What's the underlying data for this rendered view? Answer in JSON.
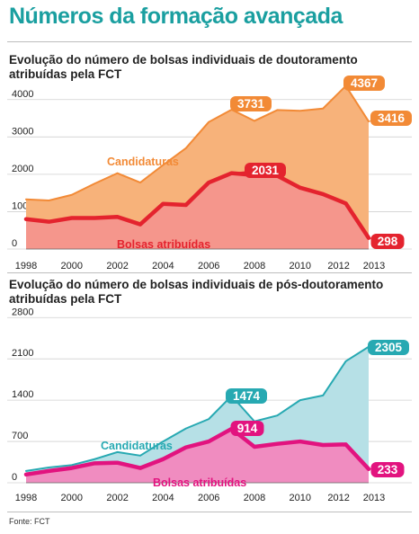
{
  "header": {
    "title": "Números da formação avançada"
  },
  "source": "Fonte: FCT",
  "colors": {
    "title": "#1a9fa0",
    "orange_fill": "#f7b27a",
    "orange_line": "#f28a36",
    "red_fill": "#f5968c",
    "red_line": "#e4232e",
    "teal_fill": "#b6e0e6",
    "teal_line": "#27a9b2",
    "pink_fill": "#f08cc0",
    "pink_line": "#e2137f"
  },
  "chart_data": [
    {
      "type": "area",
      "title": "Evolução do número de bolsas individuais de doutoramento atribuídas pela FCT",
      "x": [
        1998,
        1999,
        2000,
        2001,
        2002,
        2003,
        2004,
        2005,
        2006,
        2007,
        2008,
        2009,
        2010,
        2011,
        2012,
        2013
      ],
      "x_ticks": [
        "1998",
        "2000",
        "2002",
        "2004",
        "2006",
        "2008",
        "2010",
        "2012",
        "2013"
      ],
      "y_ticks": [
        "0",
        "1000",
        "2000",
        "3000",
        "4000"
      ],
      "ylim": [
        0,
        4500
      ],
      "grid": true,
      "series": [
        {
          "name": "Candidaturas",
          "values": [
            1330,
            1300,
            1450,
            1750,
            2030,
            1780,
            2250,
            2700,
            3400,
            3731,
            3430,
            3720,
            3700,
            3760,
            4367,
            3416
          ],
          "labels": [
            {
              "index": 9,
              "text": "3731"
            },
            {
              "index": 14,
              "text": "4367"
            },
            {
              "index": 15,
              "text": "3416"
            }
          ]
        },
        {
          "name": "Bolsas atribuídas",
          "values": [
            800,
            730,
            830,
            830,
            860,
            660,
            1210,
            1180,
            1780,
            2031,
            1980,
            1960,
            1640,
            1470,
            1220,
            298
          ],
          "labels": [
            {
              "index": 9,
              "text": "2031"
            },
            {
              "index": 15,
              "text": "298"
            }
          ]
        }
      ]
    },
    {
      "type": "area",
      "title": "Evolução do número de bolsas individuais de pós-doutoramento atribuídas pela FCT",
      "x": [
        1998,
        1999,
        2000,
        2001,
        2002,
        2003,
        2004,
        2005,
        2006,
        2007,
        2008,
        2009,
        2010,
        2011,
        2012,
        2013
      ],
      "x_ticks": [
        "1998",
        "2000",
        "2002",
        "2004",
        "2006",
        "2008",
        "2010",
        "2012",
        "2013"
      ],
      "y_ticks": [
        "0",
        "700",
        "1400",
        "2100",
        "2800"
      ],
      "ylim": [
        0,
        2850
      ],
      "grid": true,
      "series": [
        {
          "name": "Candidaturas",
          "values": [
            200,
            260,
            300,
            400,
            520,
            460,
            700,
            920,
            1080,
            1474,
            1040,
            1140,
            1400,
            1480,
            2060,
            2305
          ],
          "labels": [
            {
              "index": 9,
              "text": "1474"
            },
            {
              "index": 15,
              "text": "2305"
            }
          ]
        },
        {
          "name": "Bolsas atribuídas",
          "values": [
            140,
            200,
            250,
            330,
            340,
            250,
            400,
            600,
            700,
            914,
            610,
            660,
            700,
            640,
            650,
            233
          ],
          "labels": [
            {
              "index": 9,
              "text": "914"
            },
            {
              "index": 15,
              "text": "233"
            }
          ]
        }
      ]
    }
  ]
}
